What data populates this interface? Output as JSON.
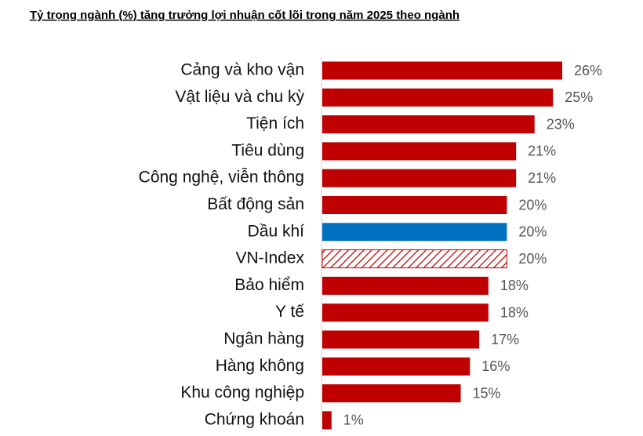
{
  "chart_data": {
    "type": "bar",
    "orientation": "horizontal",
    "title": "Tỷ trọng ngành (%) tăng trưởng lợi nhuận cốt lõi trong năm 2025 theo ngành",
    "categories": [
      "Cảng và kho vận",
      "Vật liệu và chu kỳ",
      "Tiện ích",
      "Tiêu dùng",
      "Công nghệ, viễn thông",
      "Bất động sản",
      "Dầu khí",
      "VN-Index",
      "Bảo hiểm",
      "Y tế",
      "Ngân hàng",
      "Hàng không",
      "Khu công nghiệp",
      "Chứng khoán"
    ],
    "values": [
      26,
      25,
      23,
      21,
      21,
      20,
      20,
      20,
      18,
      18,
      17,
      16,
      15,
      1
    ],
    "value_labels": [
      "26%",
      "25%",
      "23%",
      "21%",
      "21%",
      "20%",
      "20%",
      "20%",
      "18%",
      "18%",
      "17%",
      "16%",
      "15%",
      "1%"
    ],
    "colors": [
      "#c00000",
      "#c00000",
      "#c00000",
      "#c00000",
      "#c00000",
      "#c00000",
      "#0070c0",
      "#c00000",
      "#c00000",
      "#c00000",
      "#c00000",
      "#c00000",
      "#c00000",
      "#c00000"
    ],
    "bar_styles": [
      "solid",
      "solid",
      "solid",
      "solid",
      "solid",
      "solid",
      "solid",
      "hatch",
      "solid",
      "solid",
      "solid",
      "solid",
      "solid",
      "solid"
    ]
  }
}
